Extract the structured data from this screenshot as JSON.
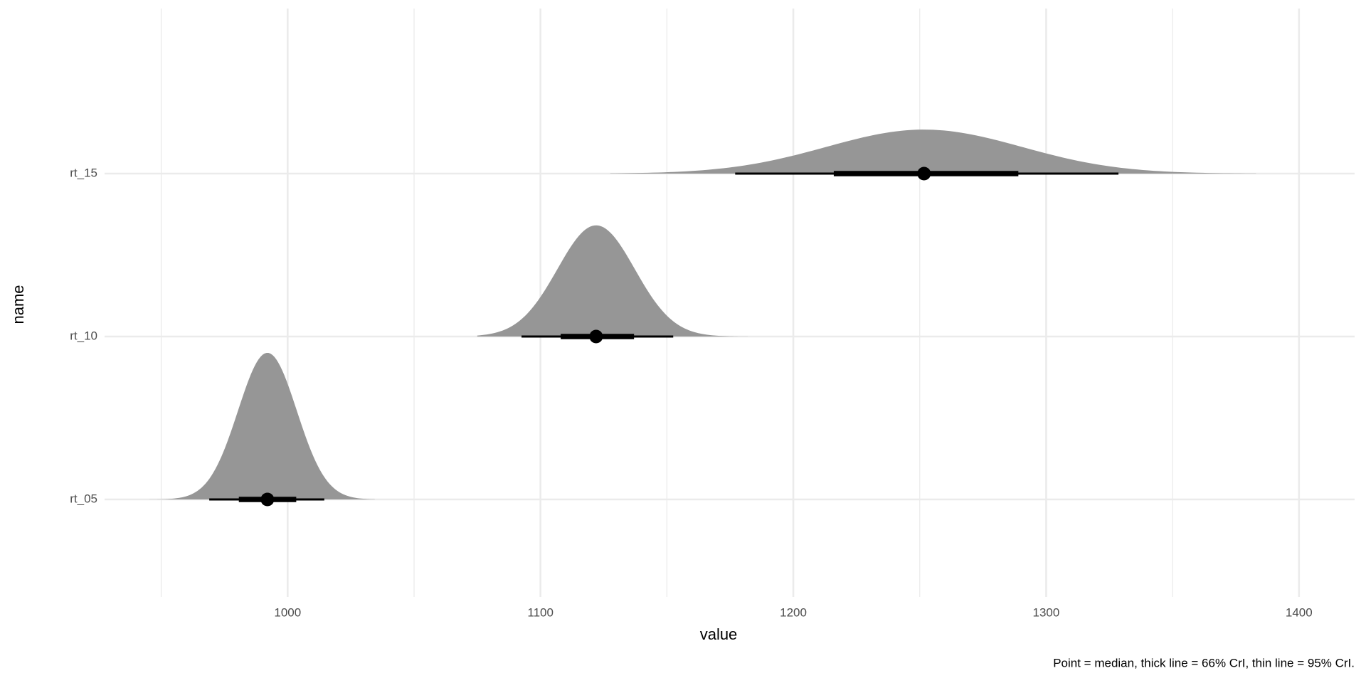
{
  "chart_data": {
    "type": "halfeye",
    "x_label": "value",
    "y_label": "name",
    "caption": "Point = median, thick line = 66% CrI, thin line = 95% CrI.",
    "categories": [
      "rt_05",
      "rt_10",
      "rt_15"
    ],
    "distributions": [
      {
        "median": 992,
        "ci66": [
          980.7,
          1003.4
        ],
        "ci95": [
          969,
          1014.5
        ],
        "range": [
          941,
          1034.5
        ]
      },
      {
        "median": 1122,
        "ci66": [
          1108,
          1137
        ],
        "ci95": [
          1092.5,
          1152.5
        ],
        "range": [
          1075,
          1182
        ]
      },
      {
        "median": 1251.7,
        "ci66": [
          1216,
          1289
        ],
        "ci95": [
          1177,
          1328.6
        ],
        "range": [
          1127.6,
          1383
        ]
      }
    ],
    "density_color": "#969696",
    "interval_color": "#000000",
    "xlim": [
      927.6,
      1422
    ],
    "xticks": [
      1000,
      1100,
      1200,
      1300,
      1400
    ],
    "xminor": [
      950,
      1050,
      1150,
      1250,
      1350
    ],
    "grid": true
  }
}
